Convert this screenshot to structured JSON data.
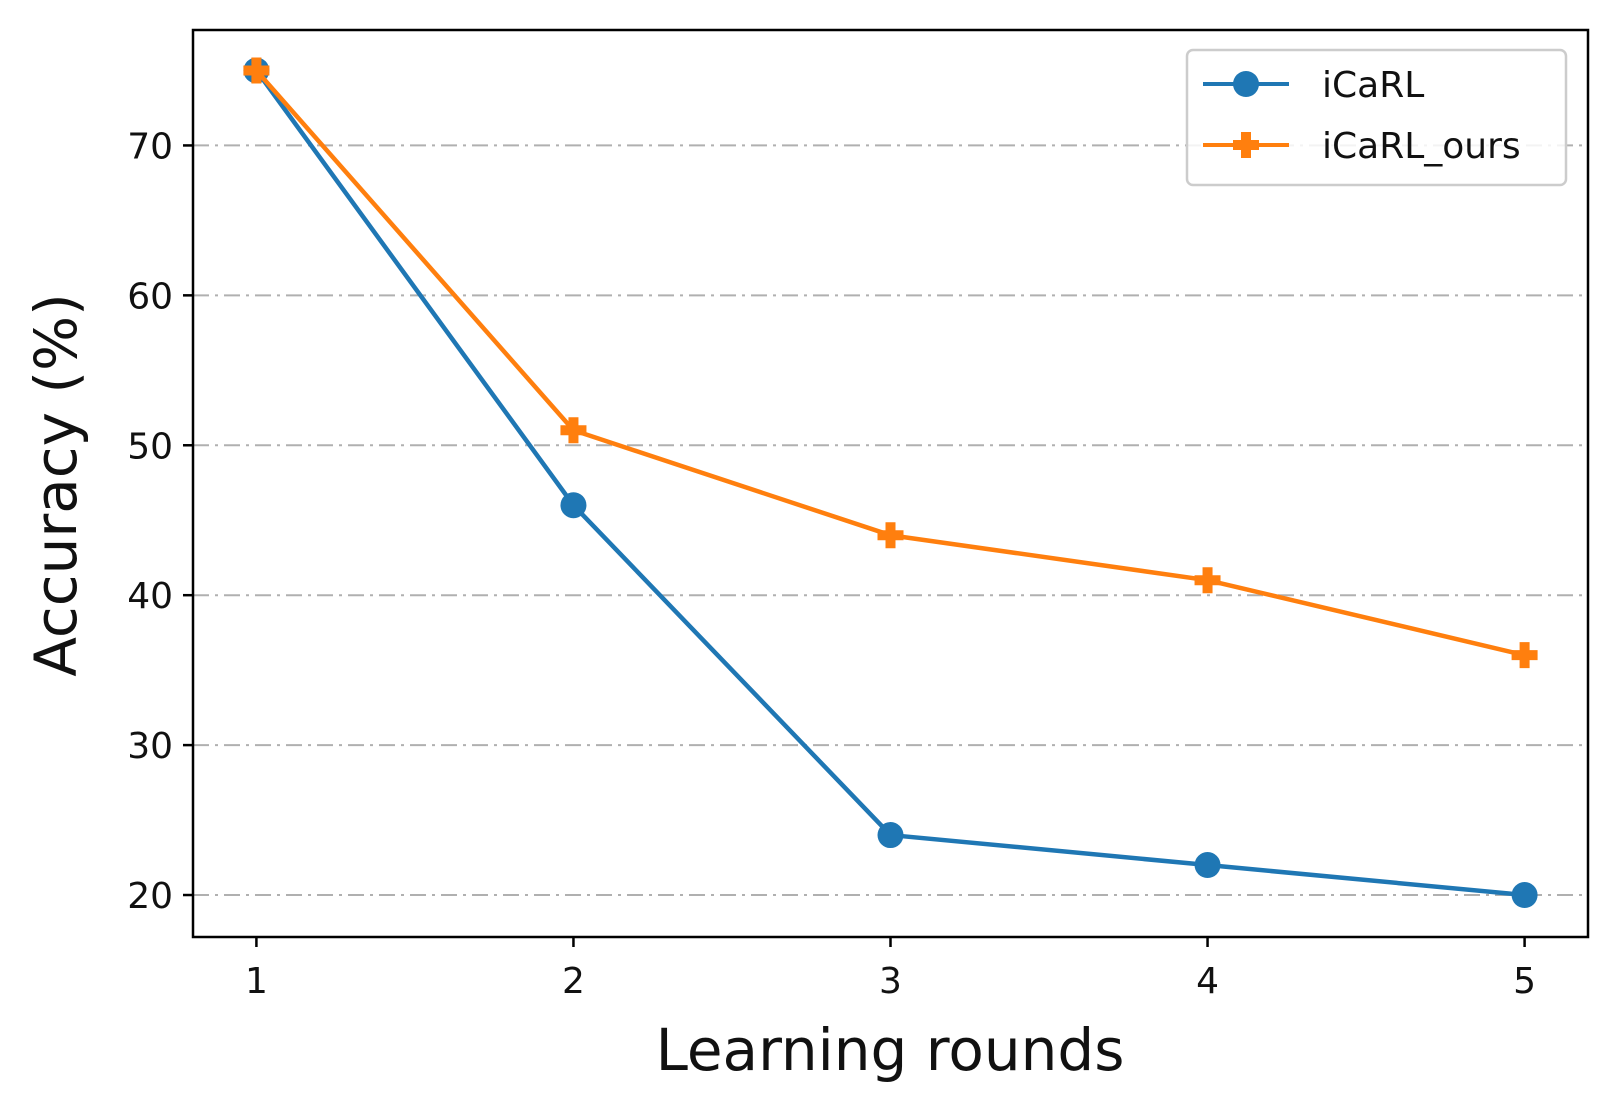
{
  "chart_data": {
    "type": "line",
    "title": "",
    "xlabel": "Learning rounds",
    "ylabel": "Accuracy (%)",
    "x": [
      1,
      2,
      3,
      4,
      5
    ],
    "x_ticks": [
      "1",
      "2",
      "3",
      "4",
      "5"
    ],
    "y_ticks": [
      "20",
      "30",
      "40",
      "50",
      "60",
      "70"
    ],
    "ylim": [
      17.2,
      77.7
    ],
    "xlim": [
      0.8,
      5.2
    ],
    "grid": "horizontal, dash-dot",
    "legend_position": "top-right",
    "series": [
      {
        "name": "iCaRL",
        "values": [
          75,
          46,
          24,
          22,
          20
        ],
        "color": "#1f77b4",
        "marker": "circle"
      },
      {
        "name": "iCaRL_ours",
        "values": [
          75,
          51,
          44,
          41,
          36
        ],
        "color": "#ff7f0e",
        "marker": "plus"
      }
    ]
  }
}
